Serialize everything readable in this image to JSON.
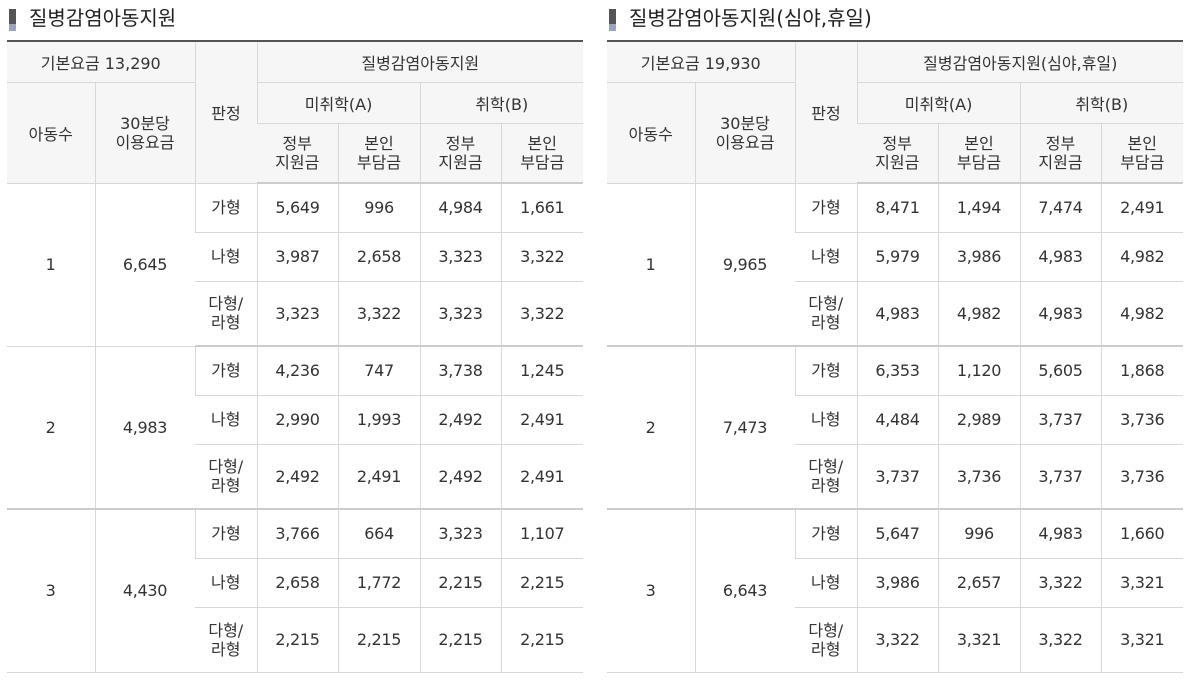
{
  "left": {
    "title": "질병감염아동지원",
    "base_fee": "기본요금 13,290",
    "header": {
      "support_type": "질병감염아동지원",
      "children": "아동수",
      "fee_30min_line1": "30분당",
      "fee_30min_line2": "이용요금",
      "grade": "판정",
      "preschool": "미취학(A)",
      "school": "취학(B)",
      "gov_line1": "정부",
      "gov_line2": "지원금",
      "self_line1": "본인",
      "self_line2": "부담금"
    },
    "groups": [
      {
        "children": "1",
        "fee": "6,645",
        "rows": [
          {
            "grade": "가형",
            "a_gov": "5,649",
            "a_self": "996",
            "b_gov": "4,984",
            "b_self": "1,661"
          },
          {
            "grade": "나형",
            "a_gov": "3,987",
            "a_self": "2,658",
            "b_gov": "3,323",
            "b_self": "3,322"
          },
          {
            "grade_line1": "다형/",
            "grade_line2": "라형",
            "a_gov": "3,323",
            "a_self": "3,322",
            "b_gov": "3,323",
            "b_self": "3,322"
          }
        ]
      },
      {
        "children": "2",
        "fee": "4,983",
        "rows": [
          {
            "grade": "가형",
            "a_gov": "4,236",
            "a_self": "747",
            "b_gov": "3,738",
            "b_self": "1,245"
          },
          {
            "grade": "나형",
            "a_gov": "2,990",
            "a_self": "1,993",
            "b_gov": "2,492",
            "b_self": "2,491"
          },
          {
            "grade_line1": "다형/",
            "grade_line2": "라형",
            "a_gov": "2,492",
            "a_self": "2,491",
            "b_gov": "2,492",
            "b_self": "2,491"
          }
        ]
      },
      {
        "children": "3",
        "fee": "4,430",
        "rows": [
          {
            "grade": "가형",
            "a_gov": "3,766",
            "a_self": "664",
            "b_gov": "3,323",
            "b_self": "1,107"
          },
          {
            "grade": "나형",
            "a_gov": "2,658",
            "a_self": "1,772",
            "b_gov": "2,215",
            "b_self": "2,215"
          },
          {
            "grade_line1": "다형/",
            "grade_line2": "라형",
            "a_gov": "2,215",
            "a_self": "2,215",
            "b_gov": "2,215",
            "b_self": "2,215"
          }
        ]
      }
    ]
  },
  "right": {
    "title": "질병감염아동지원(심야,휴일)",
    "base_fee": "기본요금 19,930",
    "header": {
      "support_type": "질병감염아동지원(심야,휴일)",
      "children": "아동수",
      "fee_30min_line1": "30분당",
      "fee_30min_line2": "이용요금",
      "grade": "판정",
      "preschool": "미취학(A)",
      "school": "취학(B)",
      "gov_line1": "정부",
      "gov_line2": "지원금",
      "self_line1": "본인",
      "self_line2": "부담금"
    },
    "groups": [
      {
        "children": "1",
        "fee": "9,965",
        "rows": [
          {
            "grade": "가형",
            "a_gov": "8,471",
            "a_self": "1,494",
            "b_gov": "7,474",
            "b_self": "2,491"
          },
          {
            "grade": "나형",
            "a_gov": "5,979",
            "a_self": "3,986",
            "b_gov": "4,983",
            "b_self": "4,982"
          },
          {
            "grade_line1": "다형/",
            "grade_line2": "라형",
            "a_gov": "4,983",
            "a_self": "4,982",
            "b_gov": "4,983",
            "b_self": "4,982"
          }
        ]
      },
      {
        "children": "2",
        "fee": "7,473",
        "rows": [
          {
            "grade": "가형",
            "a_gov": "6,353",
            "a_self": "1,120",
            "b_gov": "5,605",
            "b_self": "1,868"
          },
          {
            "grade": "나형",
            "a_gov": "4,484",
            "a_self": "2,989",
            "b_gov": "3,737",
            "b_self": "3,736"
          },
          {
            "grade_line1": "다형/",
            "grade_line2": "라형",
            "a_gov": "3,737",
            "a_self": "3,736",
            "b_gov": "3,737",
            "b_self": "3,736"
          }
        ]
      },
      {
        "children": "3",
        "fee": "6,643",
        "rows": [
          {
            "grade": "가형",
            "a_gov": "5,647",
            "a_self": "996",
            "b_gov": "4,983",
            "b_self": "1,660"
          },
          {
            "grade": "나형",
            "a_gov": "3,986",
            "a_self": "2,657",
            "b_gov": "3,322",
            "b_self": "3,321"
          },
          {
            "grade_line1": "다형/",
            "grade_line2": "라형",
            "a_gov": "3,322",
            "a_self": "3,321",
            "b_gov": "3,322",
            "b_self": "3,321"
          }
        ]
      }
    ]
  }
}
